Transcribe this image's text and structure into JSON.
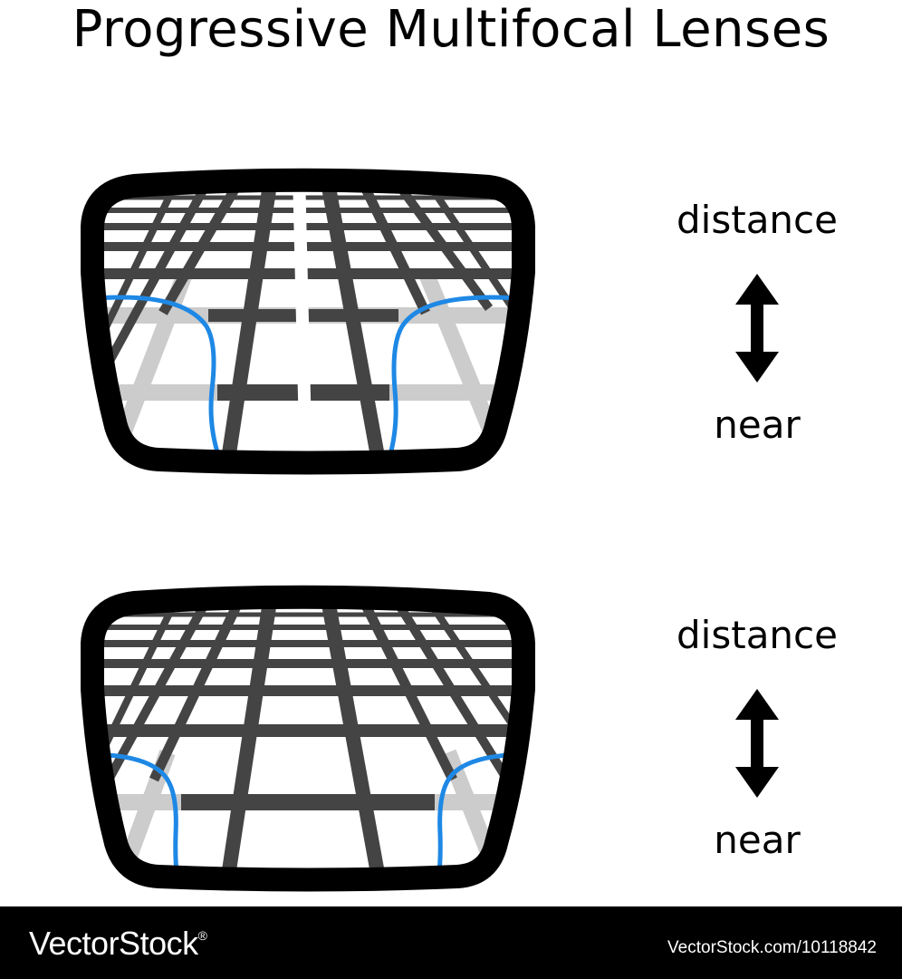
{
  "title": "Progressive Multifocal Lenses",
  "lenses": [
    {
      "top_label": "distance",
      "bottom_label": "near",
      "arrow_icon": "double-vertical-arrow-icon"
    },
    {
      "top_label": "distance",
      "bottom_label": "near",
      "arrow_icon": "double-vertical-arrow-icon"
    }
  ],
  "colors": {
    "frame": "#000000",
    "grid_dark": "#444444",
    "grid_light": "#cccccc",
    "zone_outline": "#1e88e5",
    "footer_bg": "#000000",
    "footer_text": "#ffffff"
  },
  "footer": {
    "brand": "VectorStock",
    "brand_mark": "®",
    "ref": "VectorStock.com/10118842"
  }
}
